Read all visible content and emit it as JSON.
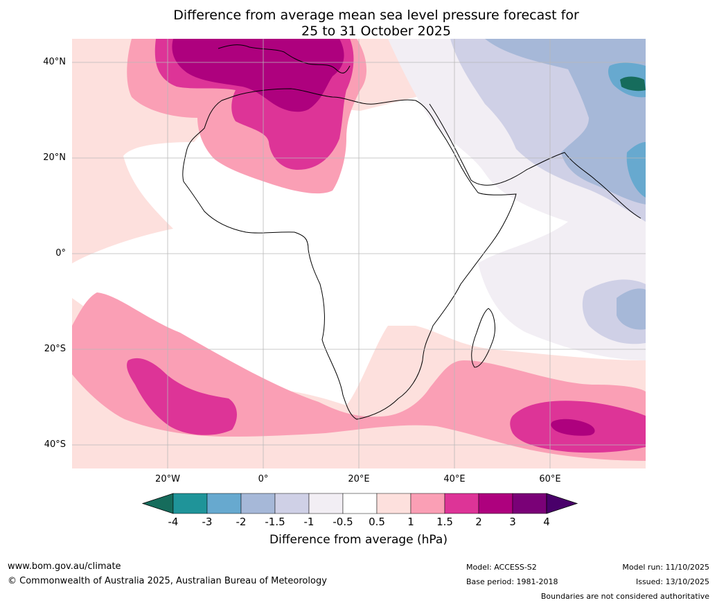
{
  "title": {
    "line1": "Difference from average mean sea level pressure forecast for",
    "line2": "25 to 31 October 2025"
  },
  "map": {
    "region": "Africa",
    "lat_labels": [
      "40°N",
      "20°N",
      "0°",
      "20°S",
      "40°S"
    ],
    "lon_labels": [
      "20°W",
      "0°",
      "20°E",
      "40°E",
      "60°E"
    ],
    "features": [
      {
        "name": "high-anomaly-mediterranean",
        "value_hPa": 3
      },
      {
        "name": "high-anomaly-south-atlantic",
        "value_hPa": 2
      },
      {
        "name": "high-anomaly-south-indian-ocean",
        "value_hPa": 3
      },
      {
        "name": "low-anomaly-arabian-sea",
        "value_hPa": -2
      },
      {
        "name": "low-anomaly-himalaya",
        "value_hPa": -4
      }
    ]
  },
  "colorbar": {
    "ticks": [
      "-4",
      "-3",
      "-2",
      "-1.5",
      "-1",
      "-0.5",
      "0.5",
      "1",
      "1.5",
      "2",
      "3",
      "4"
    ],
    "colors": [
      "#166c5c",
      "#1f9499",
      "#67a9cf",
      "#a6b8d8",
      "#cfd0e6",
      "#f2eef4",
      "#ffffff",
      "#fde0dd",
      "#fa9fb5",
      "#dd3497",
      "#ae017e",
      "#7a0177",
      "#49006a"
    ],
    "label": "Difference from average (hPa)"
  },
  "footer": {
    "url": "www.bom.gov.au/climate",
    "copyright": "© Commonwealth of Australia 2025, Australian Bureau of Meteorology",
    "model": "Model: ACCESS-S2",
    "base_period": "Base period: 1981-2018",
    "model_run": "Model run: 11/10/2025",
    "issued": "Issued: 13/10/2025",
    "boundaries": "Boundaries are not considered authoritative"
  }
}
